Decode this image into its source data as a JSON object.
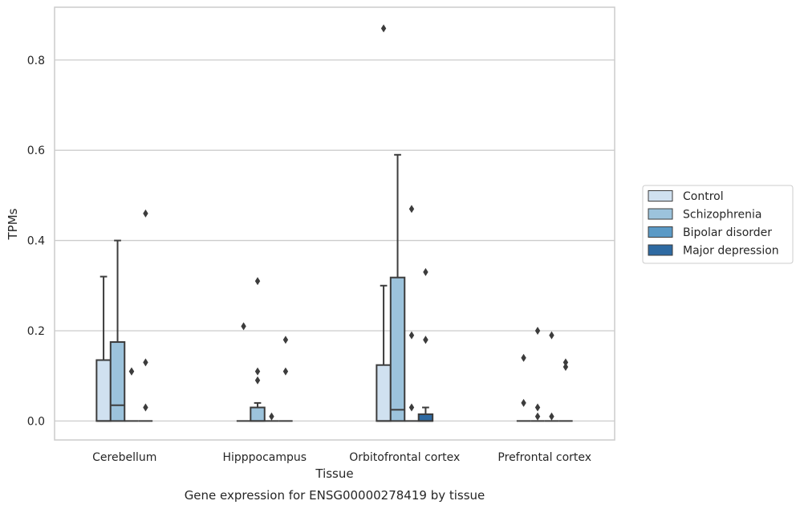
{
  "chart_data": {
    "type": "box",
    "caption": "Gene expression for ENSG00000278419 by tissue",
    "xlabel": "Tissue",
    "ylabel": "TPMs",
    "ylim": [
      -0.042,
      0.917
    ],
    "yticks": [
      "0.0",
      "0.2",
      "0.4",
      "0.6",
      "0.8"
    ],
    "grid": "horizontal",
    "legend_position": "right",
    "categories": [
      "Cerebellum",
      "Hipppocampus",
      "Orbitofrontal cortex",
      "Prefrontal cortex"
    ],
    "series": [
      {
        "name": "Control",
        "color": "#d0e1f0",
        "boxes": [
          {
            "q1": 0,
            "median": 0,
            "q3": 0.135,
            "whisker_low": 0,
            "whisker_high": 0.32,
            "outliers": []
          },
          {
            "q1": 0,
            "median": 0,
            "q3": 0,
            "whisker_low": 0,
            "whisker_high": 0,
            "outliers": [
              0.21
            ]
          },
          {
            "q1": 0,
            "median": 0,
            "q3": 0.124,
            "whisker_low": 0,
            "whisker_high": 0.3,
            "outliers": [
              0.87
            ]
          },
          {
            "q1": 0,
            "median": 0,
            "q3": 0,
            "whisker_low": 0,
            "whisker_high": 0,
            "outliers": [
              0.04,
              0.14
            ]
          }
        ]
      },
      {
        "name": "Schizophrenia",
        "color": "#9cc3dc",
        "boxes": [
          {
            "q1": 0,
            "median": 0.035,
            "q3": 0.175,
            "whisker_low": 0,
            "whisker_high": 0.4,
            "outliers": []
          },
          {
            "q1": 0,
            "median": 0,
            "q3": 0.03,
            "whisker_low": 0,
            "whisker_high": 0.04,
            "outliers": [
              0.09,
              0.11,
              0.31
            ]
          },
          {
            "q1": 0,
            "median": 0.025,
            "q3": 0.318,
            "whisker_low": 0,
            "whisker_high": 0.59,
            "outliers": []
          },
          {
            "q1": 0,
            "median": 0,
            "q3": 0,
            "whisker_low": 0,
            "whisker_high": 0,
            "outliers": [
              0.01,
              0.03,
              0.2
            ]
          }
        ]
      },
      {
        "name": "Bipolar disorder",
        "color": "#5b9ac6",
        "boxes": [
          {
            "q1": 0,
            "median": 0,
            "q3": 0,
            "whisker_low": 0,
            "whisker_high": 0,
            "outliers": [
              0.11,
              0.11
            ]
          },
          {
            "q1": 0,
            "median": 0,
            "q3": 0,
            "whisker_low": 0,
            "whisker_high": 0,
            "outliers": [
              0.01
            ]
          },
          {
            "q1": 0,
            "median": 0,
            "q3": 0,
            "whisker_low": 0,
            "whisker_high": 0,
            "outliers": [
              0.03,
              0.19,
              0.47
            ]
          },
          {
            "q1": 0,
            "median": 0,
            "q3": 0,
            "whisker_low": 0,
            "whisker_high": 0,
            "outliers": [
              0.01,
              0.19
            ]
          }
        ]
      },
      {
        "name": "Major depression",
        "color": "#2e6aa2",
        "boxes": [
          {
            "q1": 0,
            "median": 0,
            "q3": 0,
            "whisker_low": 0,
            "whisker_high": 0,
            "outliers": [
              0.03,
              0.13,
              0.46
            ]
          },
          {
            "q1": 0,
            "median": 0,
            "q3": 0,
            "whisker_low": 0,
            "whisker_high": 0,
            "outliers": [
              0.11,
              0.18
            ]
          },
          {
            "q1": 0,
            "median": 0,
            "q3": 0.015,
            "whisker_low": 0,
            "whisker_high": 0.03,
            "outliers": [
              0.18,
              0.18,
              0.33
            ]
          },
          {
            "q1": 0,
            "median": 0,
            "q3": 0,
            "whisker_low": 0,
            "whisker_high": 0,
            "outliers": [
              0.12,
              0.13
            ]
          }
        ]
      }
    ]
  }
}
